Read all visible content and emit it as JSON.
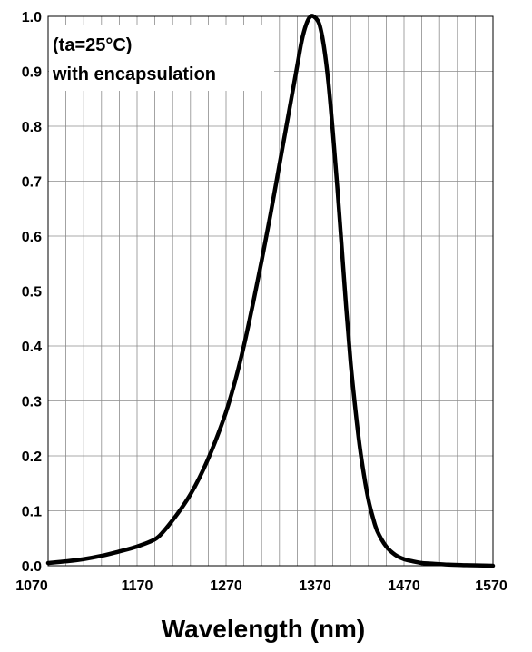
{
  "chart_data": {
    "type": "line",
    "title": "",
    "xlabel": "Wavelength (nm)",
    "ylabel": "",
    "xlim": [
      1070,
      1570
    ],
    "ylim": [
      0.0,
      1.0
    ],
    "x_ticks": [
      1070,
      1170,
      1270,
      1370,
      1470,
      1570
    ],
    "x_tick_labels": [
      "1070",
      "1170",
      "1270",
      "1370",
      "1470",
      "1570"
    ],
    "y_ticks": [
      0.0,
      0.1,
      0.2,
      0.3,
      0.4,
      0.5,
      0.6,
      0.7,
      0.8,
      0.9,
      1.0
    ],
    "y_tick_labels": [
      "0.0",
      "0.1",
      "0.2",
      "0.3",
      "0.4",
      "0.5",
      "0.6",
      "0.7",
      "0.8",
      "0.9",
      "1.0"
    ],
    "x_grid_step": 20,
    "grid": true,
    "annotations": [
      "(ta=25°C)",
      "with encapsulation"
    ],
    "series": [
      {
        "color": "#000000",
        "x": [
          1070,
          1090,
          1110,
          1130,
          1150,
          1170,
          1190,
          1200,
          1210,
          1220,
          1230,
          1240,
          1250,
          1260,
          1270,
          1280,
          1290,
          1300,
          1310,
          1320,
          1330,
          1340,
          1350,
          1355,
          1360,
          1365,
          1370,
          1375,
          1380,
          1385,
          1390,
          1395,
          1400,
          1405,
          1410,
          1415,
          1420,
          1425,
          1430,
          1435,
          1440,
          1450,
          1460,
          1470,
          1480,
          1490,
          1500,
          1520,
          1540,
          1570
        ],
        "y": [
          0.005,
          0.008,
          0.012,
          0.018,
          0.026,
          0.035,
          0.048,
          0.063,
          0.083,
          0.105,
          0.13,
          0.16,
          0.195,
          0.235,
          0.28,
          0.335,
          0.4,
          0.475,
          0.555,
          0.64,
          0.73,
          0.82,
          0.91,
          0.955,
          0.985,
          1.0,
          0.998,
          0.985,
          0.945,
          0.88,
          0.79,
          0.69,
          0.58,
          0.47,
          0.37,
          0.29,
          0.22,
          0.165,
          0.12,
          0.088,
          0.063,
          0.035,
          0.02,
          0.012,
          0.008,
          0.005,
          0.004,
          0.002,
          0.001,
          0.0
        ]
      }
    ]
  }
}
